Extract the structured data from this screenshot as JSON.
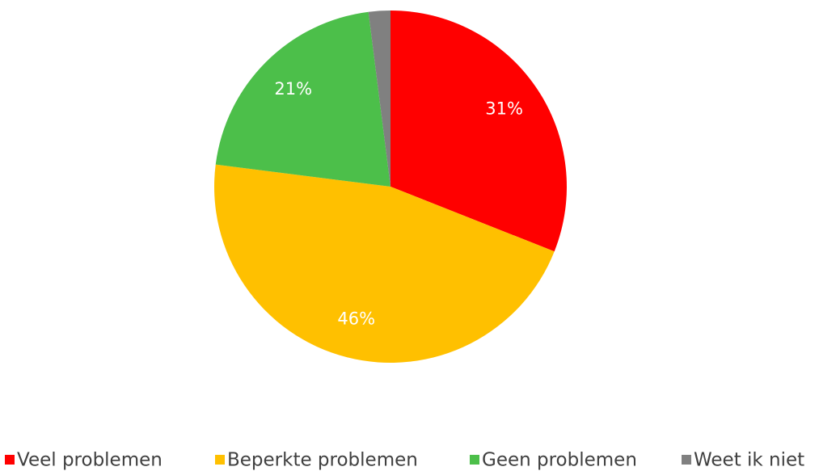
{
  "chart_data": {
    "type": "pie",
    "categories": [
      "Veel problemen",
      "Beperkte problemen",
      "Geen problemen",
      "Weet ik niet"
    ],
    "values": [
      31,
      46,
      21,
      2
    ],
    "value_labels": [
      "31%",
      "46%",
      "21%",
      null
    ],
    "colors": [
      "#ff0000",
      "#ffc000",
      "#4cbf4a",
      "#808080"
    ],
    "legend": "bottom"
  }
}
